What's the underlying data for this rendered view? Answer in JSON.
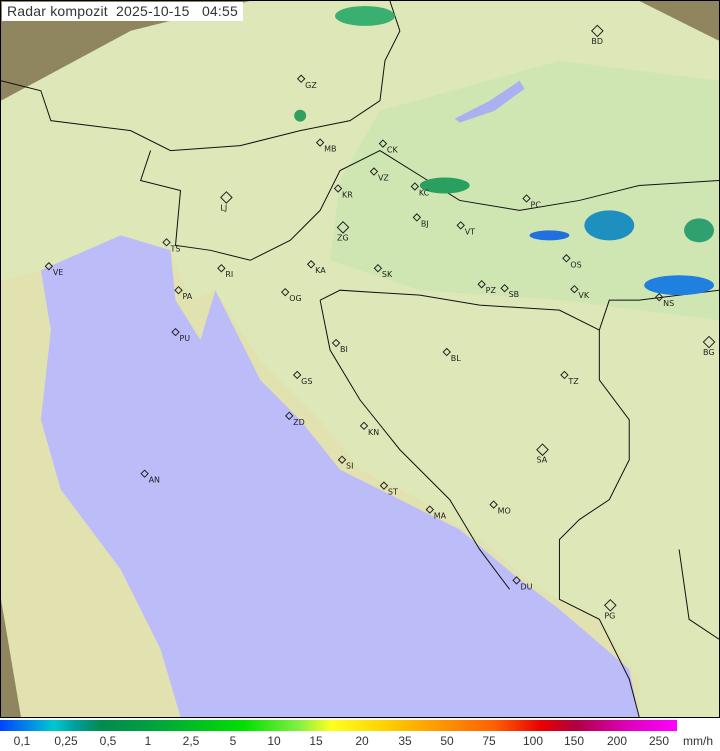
{
  "title": "Radar kompozit",
  "date": "2025-10-15",
  "time": "04:55",
  "legend": {
    "unit": "mm/h",
    "values": [
      "0,1",
      "0,25",
      "0,5",
      "1",
      "2,5",
      "5",
      "10",
      "15",
      "20",
      "35",
      "50",
      "75",
      "100",
      "150",
      "200",
      "250"
    ]
  },
  "colors": {
    "sea": "#bcbcf8",
    "land": "#e6ebb4",
    "outside": "#8a8060",
    "coverage": "#fffde0"
  },
  "cities": [
    "BD",
    "GZ",
    "MB",
    "CK",
    "VZ",
    "KR",
    "KC",
    "LJ",
    "BJ",
    "ZG",
    "VT",
    "PC",
    "TS",
    "VE",
    "RI",
    "KA",
    "SK",
    "OS",
    "PA",
    "OG",
    "PZ",
    "SB",
    "VK",
    "NS",
    "PU",
    "BI",
    "BG",
    "BL",
    "GS",
    "TZ",
    "ZD",
    "KN",
    "SA",
    "SI",
    "AN",
    "ST",
    "MA",
    "MO",
    "DU",
    "PG"
  ]
}
